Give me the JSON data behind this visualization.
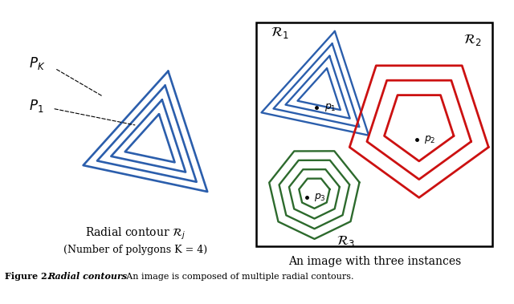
{
  "bg_color": "#ffffff",
  "blue_color": "#2b5eac",
  "red_color": "#cc1111",
  "green_color": "#2d6a2d",
  "triangle_scales": [
    1.0,
    0.8,
    0.6,
    0.4
  ],
  "pentagon_scales": [
    1.0,
    0.75,
    0.5
  ],
  "heptagon_scales": [
    1.0,
    0.78,
    0.56,
    0.34
  ],
  "lw": 1.7,
  "left_caption1": "Radial contour $\\mathcal{R}_j$",
  "left_caption2": "(Number of polygons K = 4)",
  "right_caption": "An image with three instances"
}
